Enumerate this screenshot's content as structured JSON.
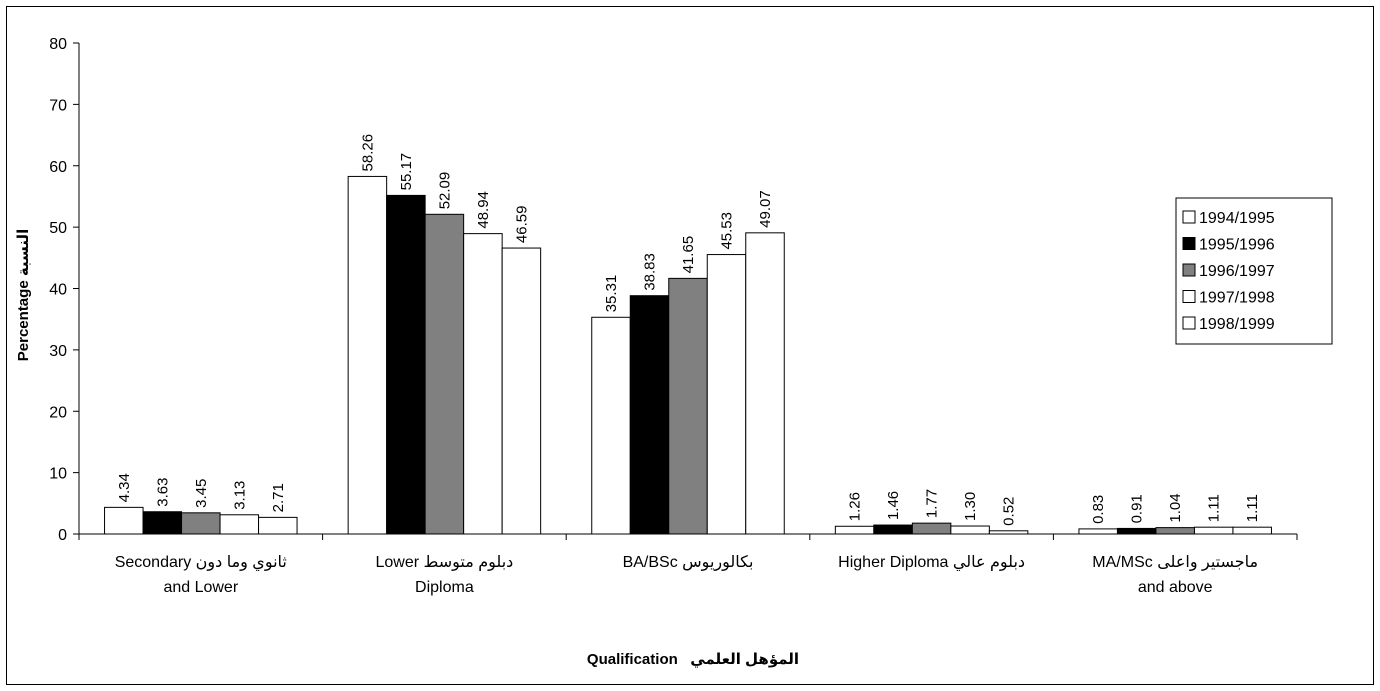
{
  "chart_data": {
    "type": "bar",
    "categories": [
      [
        "Secondary ثانوي وما دون",
        "and Lower"
      ],
      [
        "Lower دبلوم متوسط",
        "Diploma"
      ],
      [
        "BA/BSc بكالوريوس"
      ],
      [
        "Higher Diploma دبلوم عالي"
      ],
      [
        "MA/MSc ماجستير واعلى",
        "and above"
      ]
    ],
    "series": [
      {
        "name": "1994/1995",
        "color": "#ffffff",
        "values": [
          4.34,
          58.26,
          35.31,
          1.26,
          0.83
        ],
        "labels": [
          "4.34",
          "58.26",
          "35.31",
          "1.26",
          "0.83"
        ]
      },
      {
        "name": "1995/1996",
        "color": "#000000",
        "values": [
          3.63,
          55.17,
          38.83,
          1.46,
          0.91
        ],
        "labels": [
          "3.63",
          "55.17",
          "38.83",
          "1.46",
          "0.91"
        ]
      },
      {
        "name": "1996/1997",
        "color": "#808080",
        "values": [
          3.45,
          52.09,
          41.65,
          1.77,
          1.04
        ],
        "labels": [
          "3.45",
          "52.09",
          "41.65",
          "1.77",
          "1.04"
        ]
      },
      {
        "name": "1997/1998",
        "color": "#ffffff",
        "values": [
          3.13,
          48.94,
          45.53,
          1.3,
          1.11
        ],
        "labels": [
          "3.13",
          "48.94",
          "45.53",
          "1.30",
          "1.11"
        ]
      },
      {
        "name": "1998/1999",
        "color": "#ffffff",
        "values": [
          2.71,
          46.59,
          49.07,
          0.52,
          1.11
        ],
        "labels": [
          "2.71",
          "46.59",
          "49.07",
          "0.52",
          "1.11"
        ]
      }
    ],
    "ylim": [
      0,
      80
    ],
    "yticks": [
      "0",
      "10",
      "20",
      "30",
      "40",
      "50",
      "60",
      "70",
      "80"
    ],
    "xlabel": "Qualification   المؤهل العلمي",
    "ylabel": "Percentage النسبة",
    "legend_position": "right",
    "grid": false
  }
}
